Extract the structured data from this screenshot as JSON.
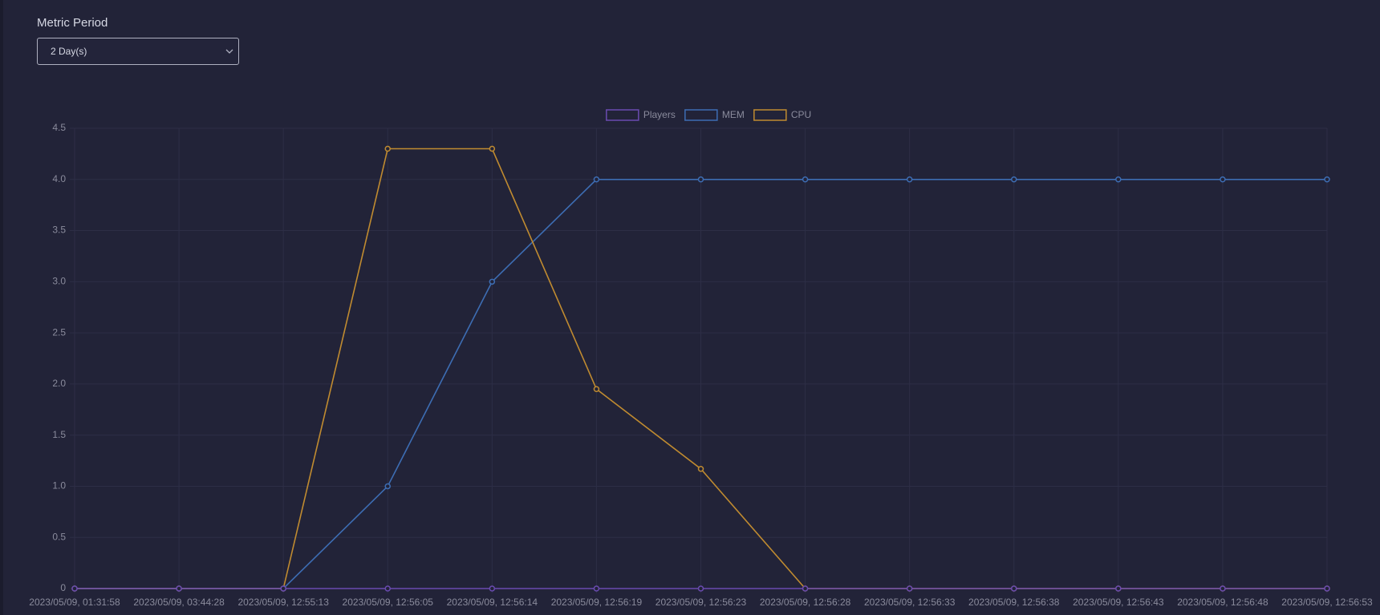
{
  "header": {
    "label": "Metric Period",
    "select_value": "2 Day(s)"
  },
  "chart_data": {
    "type": "line",
    "categories": [
      "2023/05/09, 01:31:58",
      "2023/05/09, 03:44:28",
      "2023/05/09, 12:55:13",
      "2023/05/09, 12:56:05",
      "2023/05/09, 12:56:14",
      "2023/05/09, 12:56:19",
      "2023/05/09, 12:56:23",
      "2023/05/09, 12:56:28",
      "2023/05/09, 12:56:33",
      "2023/05/09, 12:56:38",
      "2023/05/09, 12:56:43",
      "2023/05/09, 12:56:48",
      "2023/05/09, 12:56:53"
    ],
    "series": [
      {
        "name": "Players",
        "color": "#6a4bb0",
        "values": [
          0,
          0,
          0,
          0,
          0,
          0,
          0,
          0,
          0,
          0,
          0,
          0,
          0
        ]
      },
      {
        "name": "MEM",
        "color": "#3d6db3",
        "values": [
          0,
          0,
          0,
          1,
          3,
          4,
          4,
          4,
          4,
          4,
          4,
          4,
          4
        ]
      },
      {
        "name": "CPU",
        "color": "#c08b30",
        "values": [
          0,
          0,
          0,
          4.3,
          4.3,
          1.95,
          1.17,
          0,
          0,
          0,
          0,
          0,
          0
        ]
      }
    ],
    "ylim": [
      0,
      4.5
    ],
    "yticks": [
      0,
      0.5,
      {
        "value": 1,
        "label": "1.0"
      },
      1.5,
      {
        "value": 2,
        "label": "2.0"
      },
      2.5,
      {
        "value": 3,
        "label": "3.0"
      },
      3.5,
      {
        "value": 4,
        "label": "4.0"
      },
      4.5
    ],
    "grid": true,
    "legend": "top"
  }
}
